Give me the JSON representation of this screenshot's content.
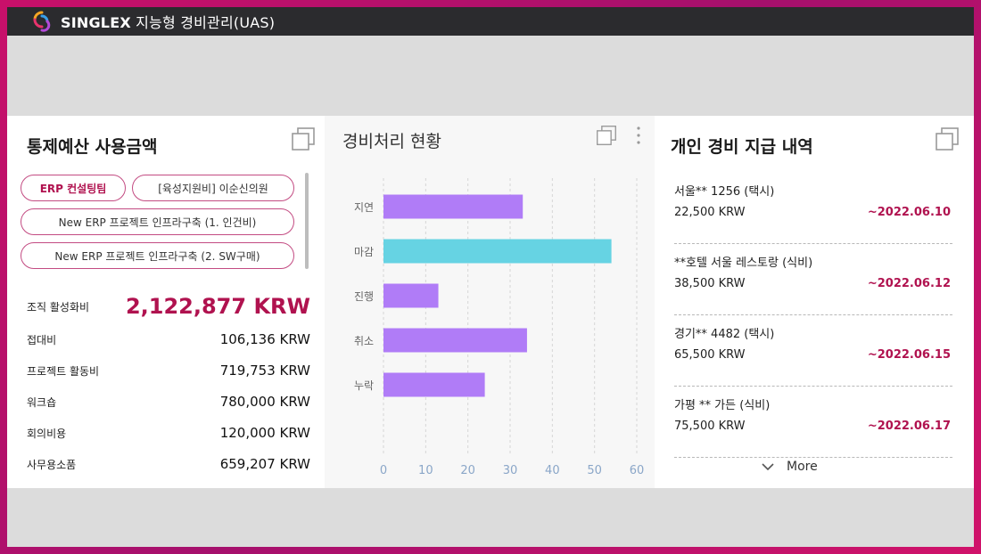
{
  "titlebar": {
    "brand": "SINGLEX",
    "subtitle": " 지능형 경비관리(UAS)"
  },
  "budget": {
    "title": "통제예산 사용금액",
    "chips": [
      {
        "label": "ERP 컨설팅팀",
        "active": true
      },
      {
        "label": "[육성지원비] 이순신의원",
        "active": false
      },
      {
        "label": "New ERP 프로젝트 인프라구축 (1. 인건비)",
        "active": false
      },
      {
        "label": "New ERP 프로젝트 인프라구축 (2. SW구매)",
        "active": false
      }
    ],
    "rows": [
      {
        "label": "조직 활성화비",
        "value": "2,122,877 KRW"
      },
      {
        "label": "접대비",
        "value": "106,136 KRW"
      },
      {
        "label": "프로젝트 활동비",
        "value": "719,753 KRW"
      },
      {
        "label": "워크숍",
        "value": "780,000 KRW"
      },
      {
        "label": "회의비용",
        "value": "120,000 KRW"
      },
      {
        "label": "사무용소품",
        "value": "659,207 KRW"
      }
    ]
  },
  "status_chart": {
    "title": "경비처리 현황"
  },
  "chart_data": {
    "type": "bar",
    "orientation": "horizontal",
    "categories": [
      "지연",
      "마감",
      "진행",
      "취소",
      "누락"
    ],
    "values": [
      33,
      54,
      13,
      34,
      24
    ],
    "colors": [
      "#b07cf7",
      "#66d3e3",
      "#b07cf7",
      "#b07cf7",
      "#b07cf7"
    ],
    "xlim": [
      0,
      60
    ],
    "xticks": [
      0,
      10,
      20,
      30,
      40,
      50,
      60
    ],
    "grid": "vertical-dashed"
  },
  "expense": {
    "title": "개인 경비 지급 내역",
    "items": [
      {
        "name": "서울** 1256 (택시)",
        "amount": "22,500 KRW",
        "date": "~2022.06.10"
      },
      {
        "name": "**호텔 서울 레스토랑 (식비)",
        "amount": "38,500 KRW",
        "date": "~2022.06.12"
      },
      {
        "name": "경기** 4482 (택시)",
        "amount": "65,500 KRW",
        "date": "~2022.06.15"
      },
      {
        "name": "가평 ** 가든 (식비)",
        "amount": "75,500 KRW",
        "date": "~2022.06.17"
      }
    ],
    "more_label": "More"
  },
  "icons": {
    "copy": "copy-icon",
    "more_vertical": "more-vertical-icon",
    "chevron": "chevron-down-icon",
    "logo": "singlex-logo-icon"
  }
}
